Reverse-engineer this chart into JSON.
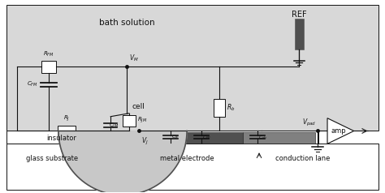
{
  "bg_color": "#d8d8d8",
  "white": "#ffffff",
  "dark_gray": "#505050",
  "metal_gray": "#808080",
  "light_gray": "#c8c8c8",
  "black": "#111111",
  "bath_text": "bath solution",
  "insulator_text": "insulator",
  "glass_text": "glass substrate",
  "metal_text": "metal electrode",
  "conduction_text": "conduction lane",
  "cell_text": "cell",
  "ref_text": "REF",
  "amp_text": "amp"
}
